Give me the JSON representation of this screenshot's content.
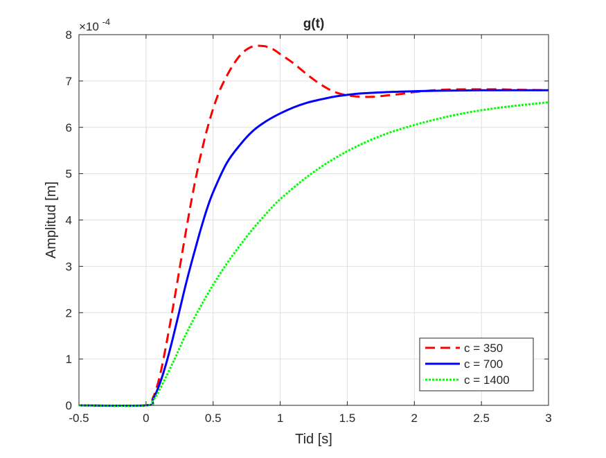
{
  "chart_data": {
    "type": "line",
    "title": "g(t)",
    "xlabel": "Tid [s]",
    "ylabel": "Amplitud [m]",
    "y_exponent_label": "×10",
    "y_exponent_power": "-4",
    "xlim": [
      -0.5,
      3
    ],
    "ylim": [
      0,
      8
    ],
    "x_ticks": [
      -0.5,
      0,
      0.5,
      1,
      1.5,
      2,
      2.5,
      3
    ],
    "x_tick_labels": [
      "-0.5",
      "0",
      "0.5",
      "1",
      "1.5",
      "2",
      "2.5",
      "3"
    ],
    "y_ticks": [
      0,
      1,
      2,
      3,
      4,
      5,
      6,
      7,
      8
    ],
    "y_tick_labels": [
      "0",
      "1",
      "2",
      "3",
      "4",
      "5",
      "6",
      "7",
      "8"
    ],
    "grid": true,
    "legend_position": "bottom-right",
    "series": [
      {
        "name": "c = 350",
        "color": "#ff0000",
        "dash": "dashed",
        "points": [
          [
            -0.5,
            0
          ],
          [
            0,
            0
          ],
          [
            0.05,
            0.15
          ],
          [
            0.1,
            0.6
          ],
          [
            0.15,
            1.3
          ],
          [
            0.2,
            2.1
          ],
          [
            0.25,
            2.95
          ],
          [
            0.3,
            3.8
          ],
          [
            0.35,
            4.6
          ],
          [
            0.4,
            5.3
          ],
          [
            0.45,
            5.9
          ],
          [
            0.5,
            6.4
          ],
          [
            0.55,
            6.8
          ],
          [
            0.6,
            7.1
          ],
          [
            0.65,
            7.35
          ],
          [
            0.7,
            7.55
          ],
          [
            0.75,
            7.68
          ],
          [
            0.8,
            7.75
          ],
          [
            0.85,
            7.76
          ],
          [
            0.9,
            7.74
          ],
          [
            0.95,
            7.68
          ],
          [
            1.0,
            7.58
          ],
          [
            1.1,
            7.38
          ],
          [
            1.2,
            7.14
          ],
          [
            1.3,
            6.93
          ],
          [
            1.4,
            6.77
          ],
          [
            1.5,
            6.69
          ],
          [
            1.6,
            6.66
          ],
          [
            1.7,
            6.66
          ],
          [
            1.8,
            6.69
          ],
          [
            1.9,
            6.72
          ],
          [
            2.0,
            6.76
          ],
          [
            2.2,
            6.81
          ],
          [
            2.4,
            6.82
          ],
          [
            2.6,
            6.82
          ],
          [
            2.8,
            6.81
          ],
          [
            3.0,
            6.8
          ]
        ]
      },
      {
        "name": "c = 700",
        "color": "#0000ff",
        "dash": "solid",
        "points": [
          [
            -0.5,
            0
          ],
          [
            0,
            0
          ],
          [
            0.05,
            0.12
          ],
          [
            0.1,
            0.45
          ],
          [
            0.15,
            0.9
          ],
          [
            0.2,
            1.45
          ],
          [
            0.25,
            2.05
          ],
          [
            0.3,
            2.65
          ],
          [
            0.35,
            3.2
          ],
          [
            0.4,
            3.72
          ],
          [
            0.45,
            4.2
          ],
          [
            0.5,
            4.6
          ],
          [
            0.6,
            5.22
          ],
          [
            0.7,
            5.62
          ],
          [
            0.8,
            5.93
          ],
          [
            0.9,
            6.14
          ],
          [
            1.0,
            6.3
          ],
          [
            1.1,
            6.43
          ],
          [
            1.2,
            6.53
          ],
          [
            1.3,
            6.6
          ],
          [
            1.4,
            6.66
          ],
          [
            1.5,
            6.7
          ],
          [
            1.6,
            6.73
          ],
          [
            1.8,
            6.76
          ],
          [
            2.0,
            6.78
          ],
          [
            2.2,
            6.79
          ],
          [
            2.5,
            6.8
          ],
          [
            3.0,
            6.8
          ]
        ]
      },
      {
        "name": "c = 1400",
        "color": "#00ff00",
        "dash": "dotted",
        "points": [
          [
            -0.5,
            0
          ],
          [
            0,
            0
          ],
          [
            0.05,
            0.1
          ],
          [
            0.1,
            0.33
          ],
          [
            0.2,
            0.92
          ],
          [
            0.3,
            1.55
          ],
          [
            0.4,
            2.1
          ],
          [
            0.5,
            2.6
          ],
          [
            0.6,
            3.05
          ],
          [
            0.7,
            3.45
          ],
          [
            0.8,
            3.82
          ],
          [
            0.9,
            4.15
          ],
          [
            1.0,
            4.45
          ],
          [
            1.2,
            4.93
          ],
          [
            1.4,
            5.32
          ],
          [
            1.6,
            5.63
          ],
          [
            1.8,
            5.87
          ],
          [
            2.0,
            6.05
          ],
          [
            2.2,
            6.2
          ],
          [
            2.4,
            6.32
          ],
          [
            2.6,
            6.41
          ],
          [
            2.8,
            6.48
          ],
          [
            3.0,
            6.54
          ]
        ]
      }
    ]
  }
}
